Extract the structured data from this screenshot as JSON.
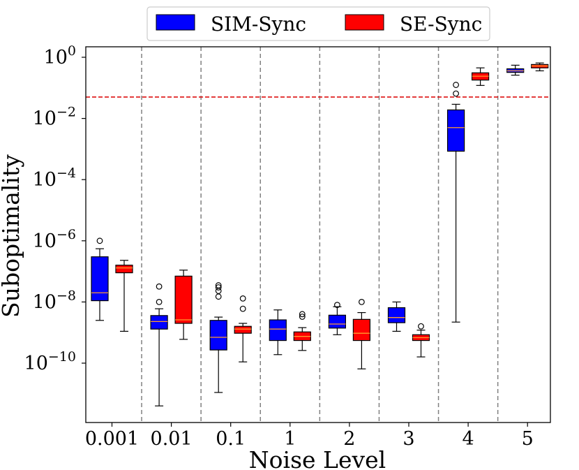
{
  "chart_data": {
    "type": "boxplot",
    "title": "",
    "xlabel": "Noise Level",
    "ylabel": "Suboptimality",
    "yscale": "log",
    "ylim": [
      1e-12,
      3
    ],
    "categories": [
      "0.001",
      "0.01",
      "0.1",
      "1",
      "2",
      "3",
      "4",
      "5"
    ],
    "yticks": [
      {
        "value": 1,
        "base": "10",
        "exp": "0"
      },
      {
        "value": 0.01,
        "base": "10",
        "exp": "−2"
      },
      {
        "value": 0.0001,
        "base": "10",
        "exp": "−4"
      },
      {
        "value": 1e-06,
        "base": "10",
        "exp": "−6"
      },
      {
        "value": 1e-08,
        "base": "10",
        "exp": "−8"
      },
      {
        "value": 1e-10,
        "base": "10",
        "exp": "−10"
      }
    ],
    "threshold_line": {
      "value": 0.05,
      "color": "#dd1111",
      "style": "dashed"
    },
    "separators": "dashed gray between categories",
    "legend": {
      "position": "top-center, outside plot"
    },
    "series": [
      {
        "name": "SIM-Sync",
        "color": "#0000ff",
        "boxes": [
          {
            "category": "0.001",
            "whislo": 2.5e-09,
            "q1": 1.1e-08,
            "med": 2e-08,
            "q3": 3e-07,
            "whishi": 5.5e-07,
            "fliers": [
              1e-06
            ]
          },
          {
            "category": "0.01",
            "whislo": 4e-12,
            "q1": 1.3e-09,
            "med": 2.3e-09,
            "q3": 3.6e-09,
            "whishi": 6e-09,
            "fliers": [
              1e-08,
              3.2e-08
            ]
          },
          {
            "category": "0.1",
            "whislo": 1.1e-11,
            "q1": 2.7e-10,
            "med": 7e-10,
            "q3": 2.5e-09,
            "whishi": 3.2e-09,
            "fliers": [
              1.5e-08,
              2.3e-08,
              3e-08,
              3.5e-08
            ]
          },
          {
            "category": "1",
            "whislo": 1.9e-10,
            "q1": 5.5e-10,
            "med": 1.3e-09,
            "q3": 2.6e-09,
            "whishi": 5.5e-09,
            "fliers": []
          },
          {
            "category": "2",
            "whislo": 8.5e-10,
            "q1": 1.4e-09,
            "med": 1.9e-09,
            "q3": 3.7e-09,
            "whishi": 7e-09,
            "fliers": [
              8e-09
            ]
          },
          {
            "category": "3",
            "whislo": 1.1e-09,
            "q1": 2.1e-09,
            "med": 3.1e-09,
            "q3": 6.5e-09,
            "whishi": 1e-08,
            "fliers": []
          },
          {
            "category": "4",
            "whislo": 2.2e-09,
            "q1": 0.00085,
            "med": 0.005,
            "q3": 0.019,
            "whishi": 0.029,
            "fliers": [
              0.065,
              0.125
            ]
          },
          {
            "category": "5",
            "whislo": 0.26,
            "q1": 0.32,
            "med": 0.36,
            "q3": 0.42,
            "whishi": 0.55,
            "fliers": []
          }
        ]
      },
      {
        "name": "SE-Sync",
        "color": "#ff0000",
        "boxes": [
          {
            "category": "0.001",
            "whislo": 1.1e-09,
            "q1": 9e-08,
            "med": 1.3e-07,
            "q3": 1.6e-07,
            "whishi": 2.3e-07,
            "fliers": []
          },
          {
            "category": "0.01",
            "whislo": 6e-10,
            "q1": 2e-09,
            "med": 2.6e-09,
            "q3": 7e-08,
            "whishi": 1.1e-07,
            "fliers": []
          },
          {
            "category": "0.1",
            "whislo": 1.1e-10,
            "q1": 9.5e-10,
            "med": 1.3e-09,
            "q3": 1.6e-09,
            "whishi": 2e-09,
            "fliers": [
              6e-09,
              1.3e-08
            ]
          },
          {
            "category": "1",
            "whislo": 2.6e-10,
            "q1": 5.5e-10,
            "med": 7.5e-10,
            "q3": 1.05e-09,
            "whishi": 1.45e-09,
            "fliers": [
              3.3e-09,
              4e-09
            ]
          },
          {
            "category": "2",
            "whislo": 6.5e-11,
            "q1": 5.5e-10,
            "med": 9.5e-10,
            "q3": 2.7e-09,
            "whishi": 4.5e-09,
            "fliers": [
              1e-08
            ]
          },
          {
            "category": "3",
            "whislo": 1.6e-10,
            "q1": 5.5e-10,
            "med": 6.8e-10,
            "q3": 8.5e-10,
            "whishi": 1.2e-09,
            "fliers": [
              1.6e-09
            ]
          },
          {
            "category": "4",
            "whislo": 0.12,
            "q1": 0.18,
            "med": 0.24,
            "q3": 0.31,
            "whishi": 0.45,
            "fliers": []
          },
          {
            "category": "5",
            "whislo": 0.36,
            "q1": 0.45,
            "med": 0.52,
            "q3": 0.58,
            "whishi": 0.65,
            "fliers": []
          }
        ]
      }
    ]
  }
}
